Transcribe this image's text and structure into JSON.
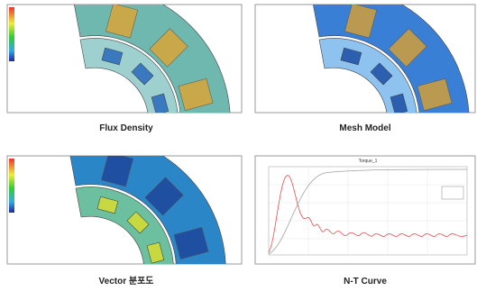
{
  "panels": [
    {
      "caption": "Flux Density"
    },
    {
      "caption": "Mesh Model"
    },
    {
      "caption": "Vector 분포도"
    },
    {
      "caption": "N-T Curve",
      "plot_title": "Torque_1"
    }
  ]
}
